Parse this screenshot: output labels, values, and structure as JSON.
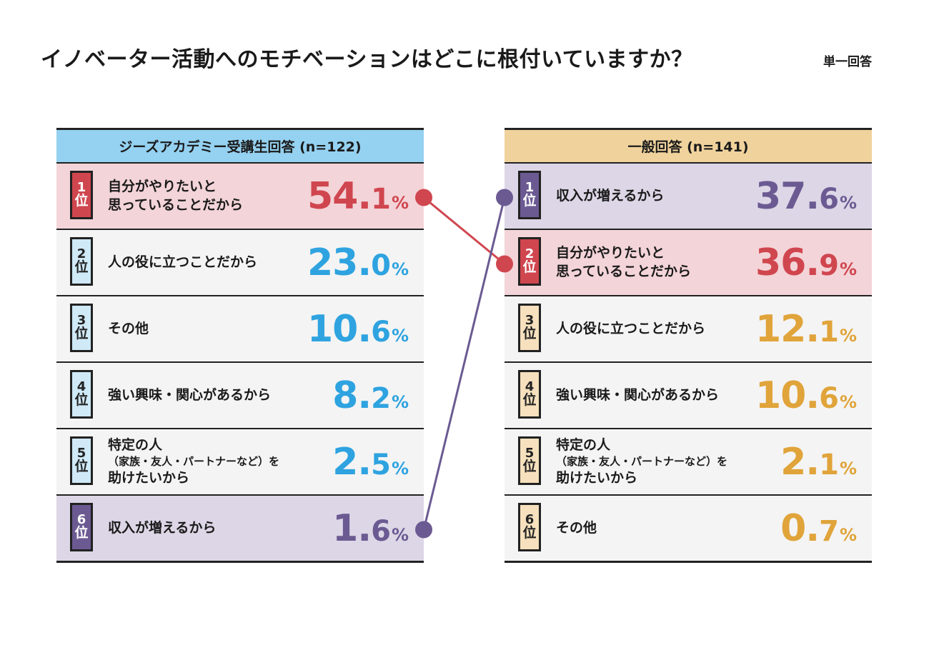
{
  "title": "イノベーター活動へのモチベーションはどこに根付いていますか？",
  "note": "単一回答",
  "colors": {
    "red": "#d0464f",
    "red_bg": "#f3d4d8",
    "purple": "#6b5a92",
    "purple_bg": "#dcd6e6",
    "blue": "#2ea3e0",
    "blue_bg": "#cfe9f7",
    "blue_header": "#95d1f0",
    "gold": "#e0a43a",
    "gold_bg": "#f6e0bd",
    "gold_header": "#f0d39c",
    "neutral_bg": "#f4f4f4"
  },
  "left_panel": {
    "header": "ジーズアカデミー受講生回答 (n=122)",
    "rank_suffix": "位",
    "percent_unit": "%",
    "rows": [
      {
        "rank": "1",
        "label_lines": [
          "自分がやりたいと",
          "思っていることだから"
        ],
        "value_int": "54.",
        "value_dec": "1"
      },
      {
        "rank": "2",
        "label_lines": [
          "人の役に立つことだから"
        ],
        "value_int": "23.",
        "value_dec": "0"
      },
      {
        "rank": "3",
        "label_lines": [
          "その他"
        ],
        "value_int": "10.",
        "value_dec": "6"
      },
      {
        "rank": "4",
        "label_lines": [
          "強い興味・関心があるから"
        ],
        "value_int": "8.",
        "value_dec": "2"
      },
      {
        "rank": "5",
        "label_lines": [
          "特定の人",
          "（家族・友人・パートナーなど）を",
          "助けたいから"
        ],
        "value_int": "2.",
        "value_dec": "5"
      },
      {
        "rank": "6",
        "label_lines": [
          "収入が増えるから"
        ],
        "value_int": "1.",
        "value_dec": "6"
      }
    ]
  },
  "right_panel": {
    "header": "一般回答 (n=141)",
    "rank_suffix": "位",
    "percent_unit": "%",
    "rows": [
      {
        "rank": "1",
        "label_lines": [
          "収入が増えるから"
        ],
        "value_int": "37.",
        "value_dec": "6"
      },
      {
        "rank": "2",
        "label_lines": [
          "自分がやりたいと",
          "思っていることだから"
        ],
        "value_int": "36.",
        "value_dec": "9"
      },
      {
        "rank": "3",
        "label_lines": [
          "人の役に立つことだから"
        ],
        "value_int": "12.",
        "value_dec": "1"
      },
      {
        "rank": "4",
        "label_lines": [
          "強い興味・関心があるから"
        ],
        "value_int": "10.",
        "value_dec": "6"
      },
      {
        "rank": "5",
        "label_lines": [
          "特定の人",
          "（家族・友人・パートナーなど）を",
          "助けたいから"
        ],
        "value_int": "2.",
        "value_dec": "1"
      },
      {
        "rank": "6",
        "label_lines": [
          "その他"
        ],
        "value_int": "0.",
        "value_dec": "7"
      }
    ]
  },
  "chart_data": {
    "type": "table",
    "title": "イノベーター活動へのモチベーションはどこに根付いていますか？",
    "note": "単一回答",
    "unit": "%",
    "series": [
      {
        "name": "ジーズアカデミー受講生回答 (n=122)",
        "categories": [
          "自分がやりたいと思っていることだから",
          "人の役に立つことだから",
          "その他",
          "強い興味・関心があるから",
          "特定の人（家族・友人・パートナーなど）を助けたいから",
          "収入が増えるから"
        ],
        "values": [
          54.1,
          23.0,
          10.6,
          8.2,
          2.5,
          1.6
        ]
      },
      {
        "name": "一般回答 (n=141)",
        "categories": [
          "収入が増えるから",
          "自分がやりたいと思っていることだから",
          "人の役に立つことだから",
          "強い興味・関心があるから",
          "特定の人（家族・友人・パートナーなど）を助けたいから",
          "その他"
        ],
        "values": [
          37.6,
          36.9,
          12.1,
          10.6,
          2.1,
          0.7
        ]
      }
    ],
    "connectors": [
      {
        "category": "自分がやりたいと思っていることだから",
        "from_rank": 1,
        "to_rank": 2,
        "color": "#d0464f"
      },
      {
        "category": "収入が増えるから",
        "from_rank": 6,
        "to_rank": 1,
        "color": "#6b5a92"
      }
    ]
  }
}
